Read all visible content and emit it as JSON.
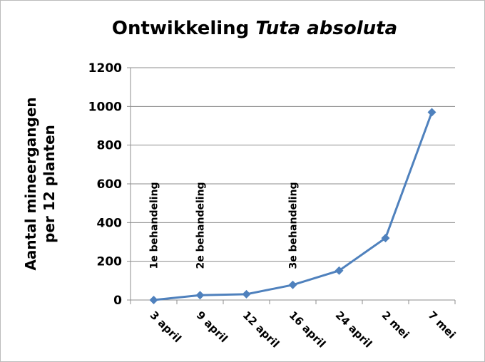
{
  "chart_data": {
    "type": "line",
    "title_parts": [
      "Ontwikkeling",
      "Tuta absoluta"
    ],
    "ylabel": [
      "Aantal mineergangen",
      "per 12 planten"
    ],
    "categories": [
      "3 april",
      "9 april",
      "12 april",
      "16 april",
      "24 april",
      "2 mei",
      "7 mei"
    ],
    "series": [
      {
        "color": "#4f81bd",
        "values": [
          0,
          25,
          30,
          78,
          152,
          320,
          970
        ]
      }
    ],
    "ylim": [
      0,
      1200
    ],
    "yticks": [
      0,
      200,
      400,
      600,
      800,
      1000,
      1200
    ],
    "grid": true,
    "annotations": [
      {
        "text": "1e behandeling",
        "category": 0
      },
      {
        "text": "2e behandeling",
        "category": 1
      },
      {
        "text": "3e behandeling",
        "category": 3
      }
    ]
  }
}
